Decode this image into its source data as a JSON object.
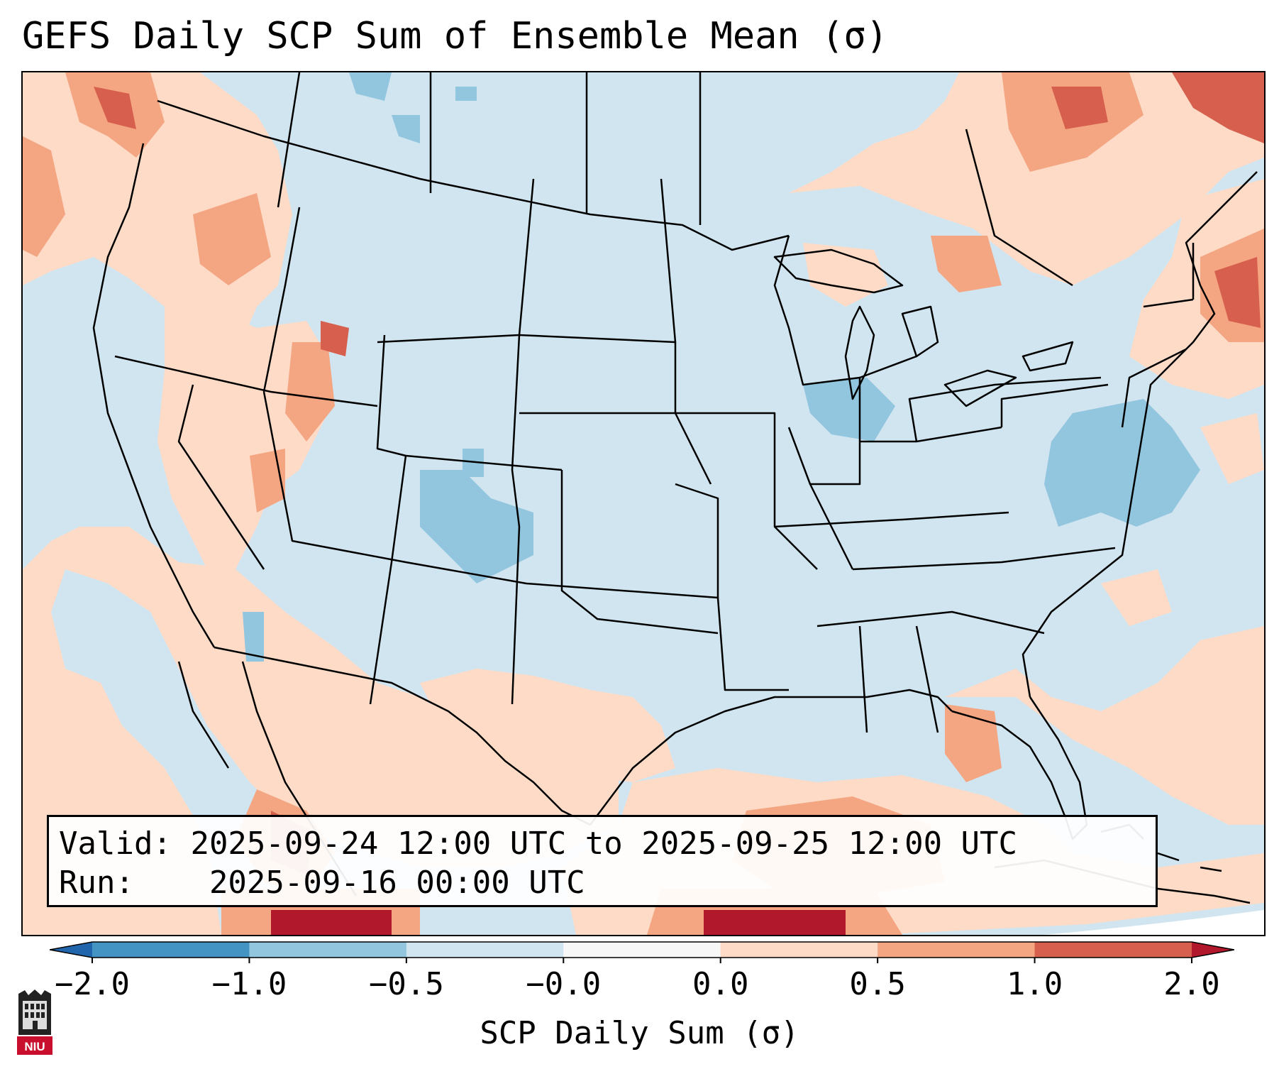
{
  "title": "GEFS Daily SCP Sum of Ensemble Mean (σ)",
  "info": {
    "valid_label": "Valid:",
    "valid_value": "2025-09-24 12:00 UTC to 2025-09-25 12:00 UTC",
    "run_label": "Run:",
    "run_value": "2025-09-16 00:00 UTC"
  },
  "colorbar": {
    "title": "SCP Daily Sum (σ)",
    "tick_labels": [
      "−2.0",
      "−1.0",
      "−0.5",
      "−0.0",
      "0.0",
      "0.5",
      "1.0",
      "2.0"
    ],
    "bins": [
      {
        "range": "< -2.0",
        "color": "#2166ac"
      },
      {
        "range": "-2.0 to -1.0",
        "color": "#4393c3"
      },
      {
        "range": "-1.0 to -0.5",
        "color": "#92c5de"
      },
      {
        "range": "-0.5 to -0.0",
        "color": "#d1e5f0"
      },
      {
        "range": "-0.0 to 0.0",
        "color": "#f7f7f7"
      },
      {
        "range": "0.0 to 0.5",
        "color": "#fddbc7"
      },
      {
        "range": "0.5 to 1.0",
        "color": "#f4a582"
      },
      {
        "range": "1.0 to 2.0",
        "color": "#d6604d"
      },
      {
        "range": "> 2.0",
        "color": "#b2182b"
      }
    ]
  },
  "logo": {
    "text": "NIU",
    "color": "#c8102e"
  }
}
